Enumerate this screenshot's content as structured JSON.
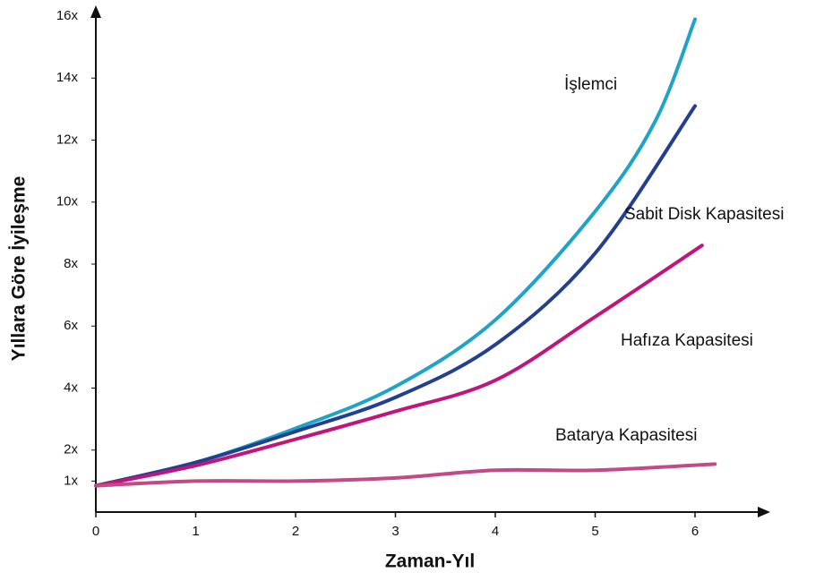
{
  "chart_data": {
    "type": "line",
    "xlabel": "Zaman-Yıl",
    "ylabel": "Yıllara Göre İyileşme",
    "xlim": [
      0,
      6.7
    ],
    "ylim": [
      0,
      16
    ],
    "xticks": [
      0,
      1,
      2,
      3,
      4,
      5,
      6
    ],
    "yticks": [
      {
        "value": 1,
        "label": "1x"
      },
      {
        "value": 2,
        "label": "2x"
      },
      {
        "value": 4,
        "label": "4x"
      },
      {
        "value": 6,
        "label": "6x"
      },
      {
        "value": 8,
        "label": "8x"
      },
      {
        "value": 10,
        "label": "10x"
      },
      {
        "value": 12,
        "label": "12x"
      },
      {
        "value": 14,
        "label": "14x"
      },
      {
        "value": 16,
        "label": "16x"
      }
    ],
    "series": [
      {
        "name": "İşlemci",
        "color": "#1fa3c8",
        "x": [
          0,
          1,
          2,
          3,
          4,
          5,
          5.6,
          6
        ],
        "values": [
          0.85,
          1.6,
          2.7,
          4.05,
          6.2,
          9.7,
          12.6,
          15.9
        ]
      },
      {
        "name": "Sabit Disk Kapasitesi",
        "color": "#233f8f",
        "x": [
          0,
          1,
          2,
          3,
          4,
          5,
          6
        ],
        "values": [
          0.85,
          1.6,
          2.6,
          3.7,
          5.4,
          8.35,
          13.1
        ]
      },
      {
        "name": "Hafıza Kapasitesi",
        "color": "#c0157a",
        "x": [
          0,
          1,
          2,
          3,
          4,
          5,
          6.07
        ],
        "values": [
          0.85,
          1.5,
          2.35,
          3.25,
          4.25,
          6.3,
          8.6
        ]
      },
      {
        "name": "Batarya Kapasitesi",
        "color": "#c24a86",
        "x": [
          0,
          1,
          2,
          3,
          4,
          5,
          6.2
        ],
        "values": [
          0.85,
          1.0,
          1.0,
          1.1,
          1.35,
          1.35,
          1.55
        ]
      }
    ]
  }
}
